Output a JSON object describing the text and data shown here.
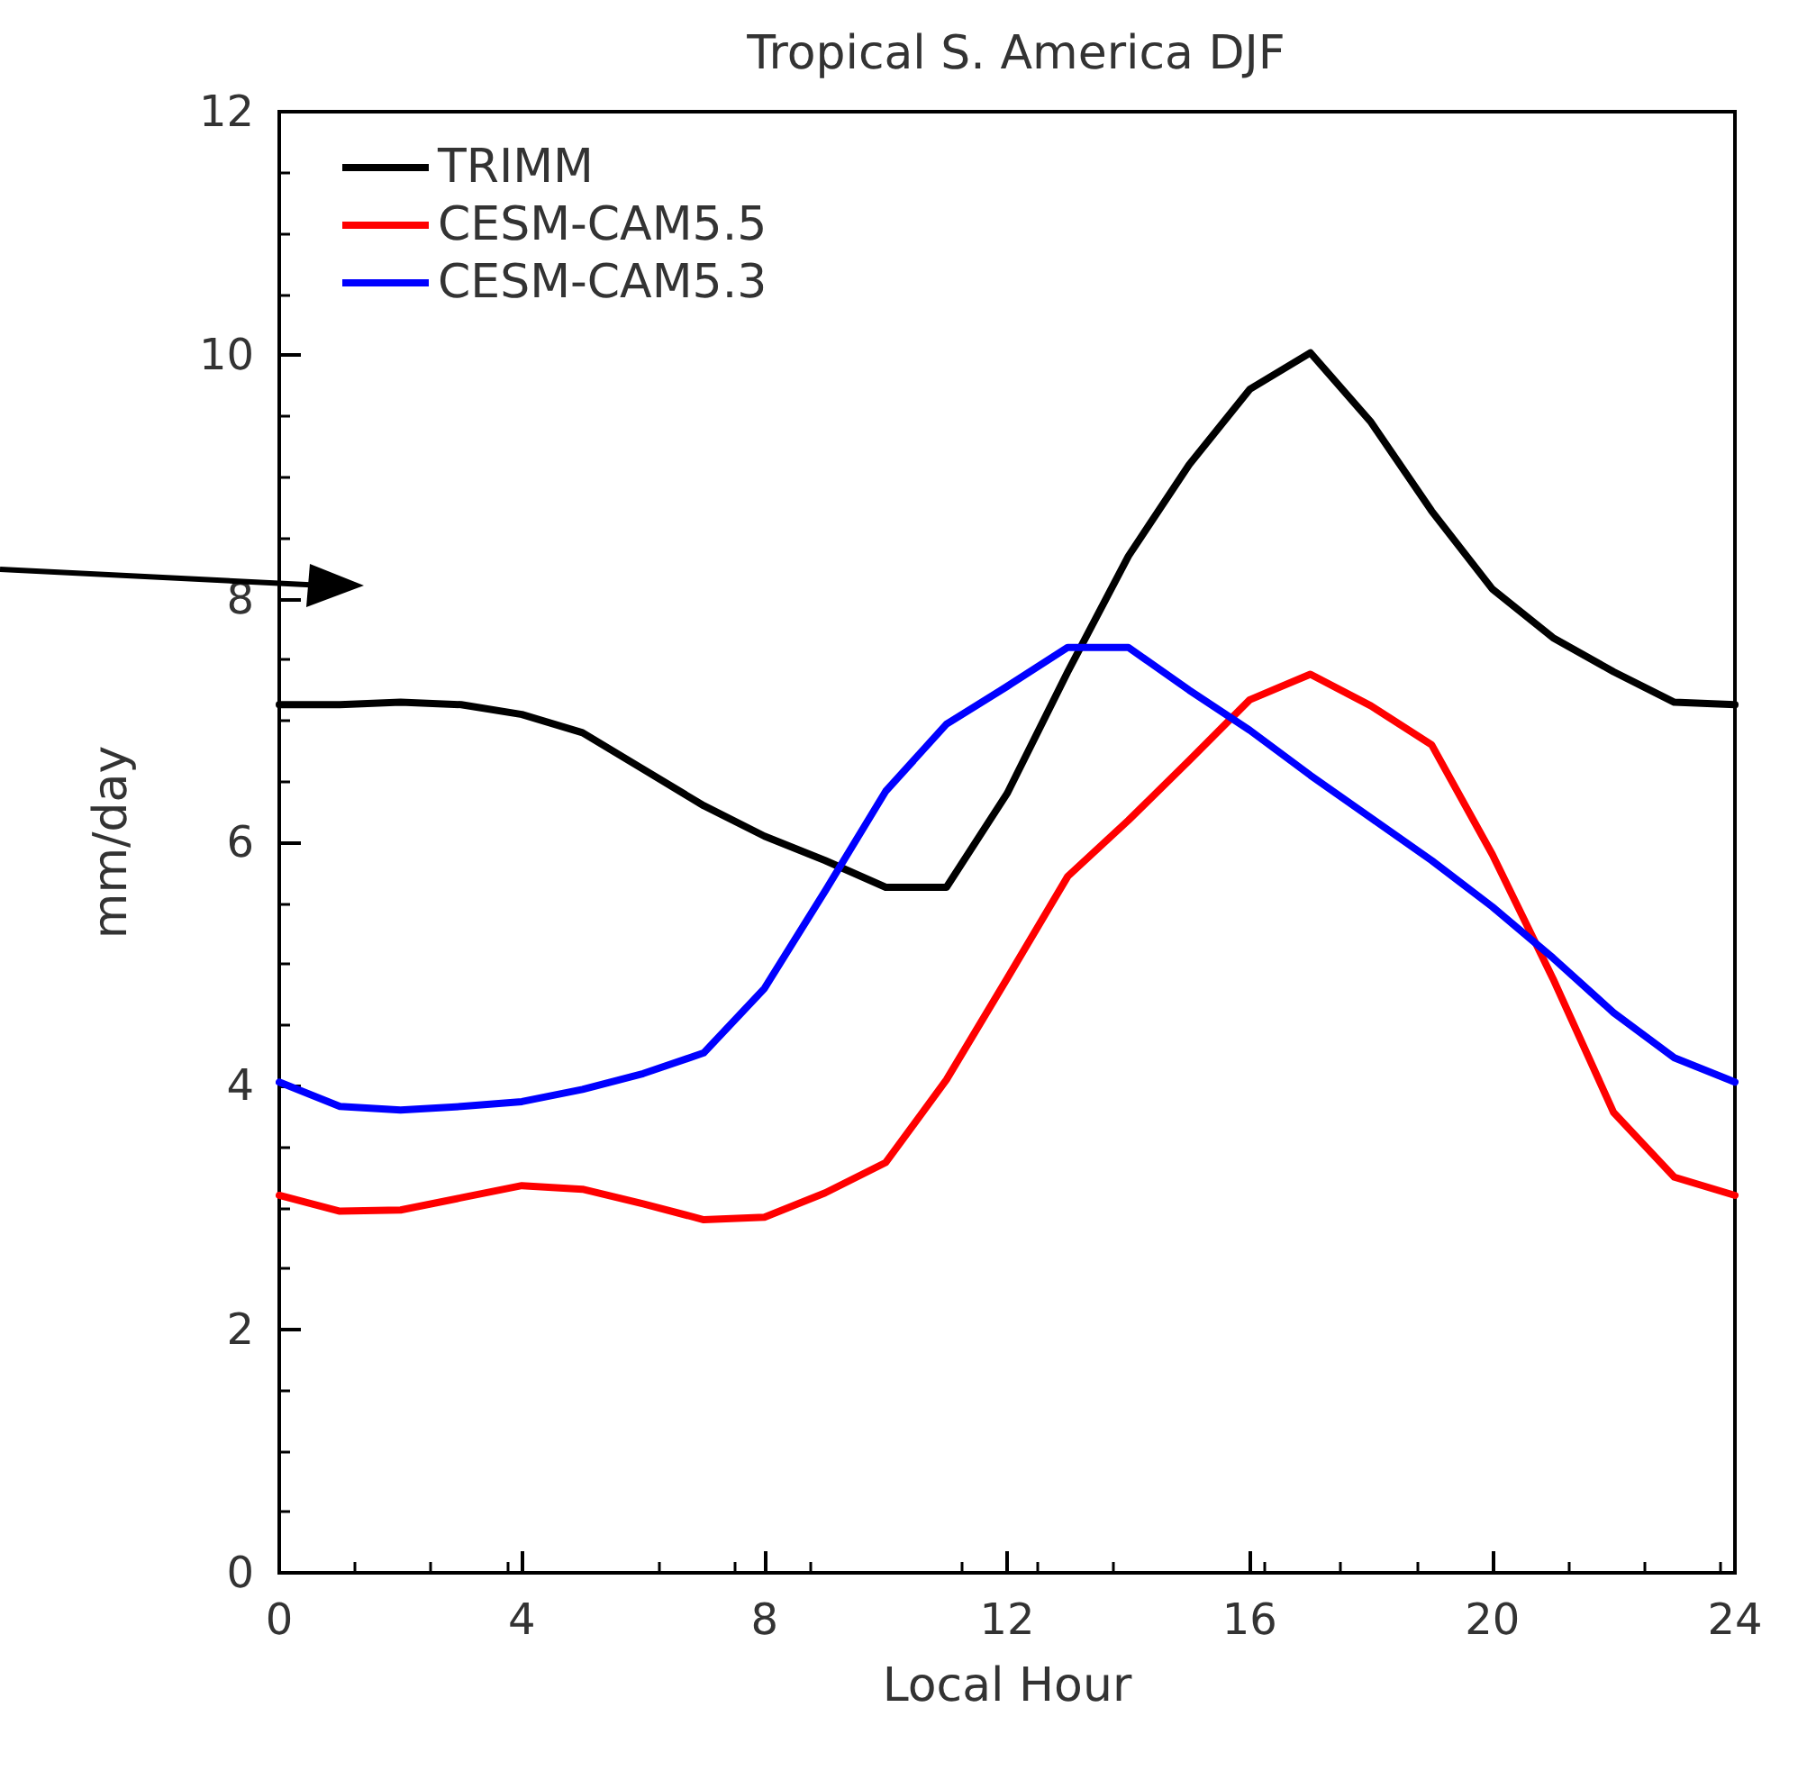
{
  "chart_data": {
    "type": "line",
    "title": "Tropical S. America DJF",
    "xlabel": "Local Hour",
    "ylabel": "mm/day",
    "x": [
      0,
      1,
      2,
      3,
      4,
      5,
      6,
      7,
      8,
      9,
      10,
      11,
      12,
      13,
      14,
      15,
      16,
      17,
      18,
      19,
      20,
      21,
      22,
      23,
      24
    ],
    "series": [
      {
        "name": "TRIMM",
        "color": "#000000",
        "values": [
          7.13,
          7.13,
          7.15,
          7.13,
          7.05,
          6.9,
          6.6,
          6.3,
          6.05,
          5.85,
          5.63,
          5.63,
          6.4,
          7.4,
          8.35,
          9.1,
          9.72,
          10.02,
          9.45,
          8.72,
          8.08,
          7.68,
          7.4,
          7.15,
          7.13
        ]
      },
      {
        "name": "CESM-CAM5.5",
        "color": "#ff0000",
        "values": [
          3.1,
          2.97,
          2.98,
          3.08,
          3.18,
          3.15,
          3.03,
          2.9,
          2.92,
          3.12,
          3.37,
          4.05,
          4.88,
          5.72,
          6.18,
          6.67,
          7.17,
          7.38,
          7.12,
          6.8,
          5.9,
          4.88,
          3.78,
          3.25,
          3.1
        ]
      },
      {
        "name": "CESM-CAM5.3",
        "color": "#0000ff",
        "values": [
          4.03,
          3.83,
          3.8,
          3.83,
          3.87,
          3.97,
          4.1,
          4.27,
          4.8,
          5.6,
          6.42,
          6.97,
          7.28,
          7.6,
          7.6,
          7.25,
          6.92,
          6.55,
          6.2,
          5.85,
          5.47,
          5.05,
          4.6,
          4.23,
          4.03
        ]
      }
    ],
    "xlim": [
      0,
      24
    ],
    "xticks": [
      0,
      4,
      8,
      12,
      16,
      20,
      24
    ],
    "ylim": [
      0,
      12
    ],
    "yticks": [
      0,
      2,
      4,
      6,
      8,
      10,
      12
    ],
    "grid": false,
    "legend": "top left",
    "marker": "none",
    "line_style": "solid"
  }
}
